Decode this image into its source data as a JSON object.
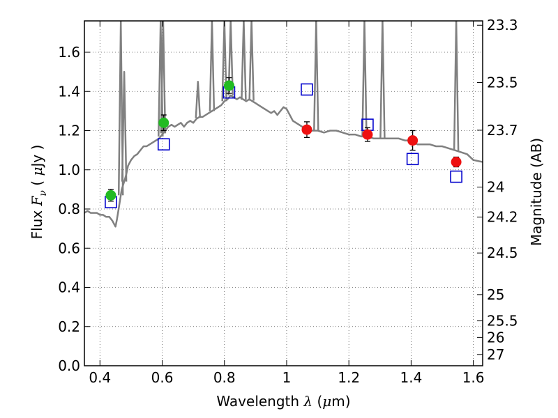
{
  "chart_data": {
    "type": "scatter",
    "xlabel": {
      "prefix": "Wavelength  ",
      "symbol": "λ",
      "unit_open": " (",
      "unit_mu": "μ",
      "unit_rest": "m)"
    },
    "ylabel": {
      "prefix": "Flux  ",
      "symbol": "F",
      "sub": "ν",
      "unit_open": "  ( ",
      "unit_mu": "μ",
      "unit_rest": "Jy )"
    },
    "y2label": "Magnitude (AB)",
    "xlim": [
      0.35,
      1.63
    ],
    "ylim": [
      0.0,
      1.76
    ],
    "grid": true,
    "x_ticks": [
      0.4,
      0.6,
      0.8,
      1.0,
      1.2,
      1.4,
      1.6
    ],
    "x_tick_labels": [
      "0.4",
      "0.6",
      "0.8",
      "1",
      "1.2",
      "1.4",
      "1.6"
    ],
    "y_ticks": [
      0.0,
      0.2,
      0.4,
      0.6,
      0.8,
      1.0,
      1.2,
      1.4,
      1.6
    ],
    "y_tick_labels": [
      "0.0",
      "0.2",
      "0.4",
      "0.6",
      "0.8",
      "1.0",
      "1.2",
      "1.4",
      "1.6"
    ],
    "y2_ticks": [
      23.3,
      23.5,
      23.7,
      24,
      24.2,
      24.5,
      25,
      25.5,
      26,
      27
    ],
    "y2_tick_labels": [
      "23.3",
      "23.5",
      "23.7",
      "24",
      "24.2",
      "24.5",
      "25",
      "25.5",
      "26",
      "27"
    ],
    "colors": {
      "model_line": "#808080",
      "green_points": "#22bb22",
      "red_points": "#ee1111",
      "squares": "#0000cc",
      "grid": "#555555"
    },
    "series": [
      {
        "marker": "circle-green",
        "x": [
          0.435,
          0.605,
          0.815
        ],
        "y": [
          0.87,
          1.24,
          1.43
        ],
        "yerr": [
          0.03,
          0.04,
          0.04
        ]
      },
      {
        "marker": "circle-red",
        "x": [
          1.065,
          1.26,
          1.405,
          1.545
        ],
        "y": [
          1.205,
          1.18,
          1.15,
          1.04
        ],
        "yerr": [
          0.04,
          0.035,
          0.05,
          0.025
        ]
      },
      {
        "marker": "square-blue",
        "x": [
          0.435,
          0.605,
          0.815,
          1.065,
          1.26,
          1.405,
          1.545
        ],
        "y": [
          0.835,
          1.13,
          1.395,
          1.41,
          1.23,
          1.055,
          0.965
        ]
      },
      {
        "marker": "line-gray",
        "x": [
          0.35,
          0.36,
          0.37,
          0.38,
          0.39,
          0.4,
          0.41,
          0.42,
          0.43,
          0.44,
          0.45,
          0.455,
          0.46,
          0.465,
          0.47,
          0.48,
          0.485,
          0.49,
          0.5,
          0.51,
          0.52,
          0.53,
          0.54,
          0.55,
          0.56,
          0.57,
          0.58,
          0.59,
          0.595,
          0.6,
          0.605,
          0.61,
          0.62,
          0.63,
          0.64,
          0.65,
          0.66,
          0.67,
          0.68,
          0.69,
          0.7,
          0.71,
          0.72,
          0.73,
          0.74,
          0.75,
          0.76,
          0.77,
          0.78,
          0.79,
          0.8,
          0.81,
          0.82,
          0.83,
          0.84,
          0.85,
          0.86,
          0.87,
          0.88,
          0.89,
          0.9,
          0.91,
          0.92,
          0.93,
          0.94,
          0.95,
          0.96,
          0.97,
          0.98,
          0.99,
          1.0,
          1.02,
          1.04,
          1.06,
          1.08,
          1.1,
          1.12,
          1.14,
          1.16,
          1.18,
          1.2,
          1.22,
          1.24,
          1.26,
          1.28,
          1.3,
          1.32,
          1.34,
          1.36,
          1.38,
          1.4,
          1.42,
          1.44,
          1.46,
          1.48,
          1.5,
          1.52,
          1.54,
          1.56,
          1.58,
          1.6,
          1.63
        ],
        "y": [
          0.78,
          0.79,
          0.78,
          0.78,
          0.78,
          0.77,
          0.77,
          0.76,
          0.76,
          0.74,
          0.71,
          0.75,
          0.8,
          0.85,
          0.9,
          0.95,
          0.98,
          1.02,
          1.05,
          1.07,
          1.08,
          1.1,
          1.12,
          1.12,
          1.13,
          1.14,
          1.15,
          1.16,
          1.17,
          1.18,
          1.19,
          1.2,
          1.22,
          1.23,
          1.22,
          1.23,
          1.24,
          1.22,
          1.24,
          1.25,
          1.24,
          1.26,
          1.27,
          1.27,
          1.28,
          1.29,
          1.3,
          1.31,
          1.32,
          1.33,
          1.35,
          1.36,
          1.38,
          1.37,
          1.36,
          1.37,
          1.36,
          1.35,
          1.36,
          1.35,
          1.34,
          1.33,
          1.32,
          1.31,
          1.3,
          1.29,
          1.3,
          1.28,
          1.3,
          1.32,
          1.31,
          1.25,
          1.23,
          1.21,
          1.2,
          1.2,
          1.19,
          1.2,
          1.2,
          1.19,
          1.18,
          1.18,
          1.17,
          1.17,
          1.16,
          1.16,
          1.16,
          1.16,
          1.16,
          1.15,
          1.15,
          1.13,
          1.13,
          1.13,
          1.12,
          1.12,
          1.11,
          1.1,
          1.09,
          1.08,
          1.05,
          1.04
        ]
      }
    ],
    "emission_lines": [
      {
        "x": 0.467,
        "top": 1.76
      },
      {
        "x": 0.478,
        "top": 1.5
      },
      {
        "x": 0.595,
        "top": 1.76
      },
      {
        "x": 0.603,
        "top": 1.76
      },
      {
        "x": 0.715,
        "top": 1.45
      },
      {
        "x": 0.76,
        "top": 1.76
      },
      {
        "x": 0.8,
        "top": 1.76
      },
      {
        "x": 0.82,
        "top": 1.76
      },
      {
        "x": 0.862,
        "top": 1.76
      },
      {
        "x": 0.887,
        "top": 1.76
      },
      {
        "x": 1.095,
        "top": 1.76
      },
      {
        "x": 1.25,
        "top": 1.76
      },
      {
        "x": 1.308,
        "top": 1.76
      },
      {
        "x": 1.545,
        "top": 1.76
      }
    ]
  }
}
